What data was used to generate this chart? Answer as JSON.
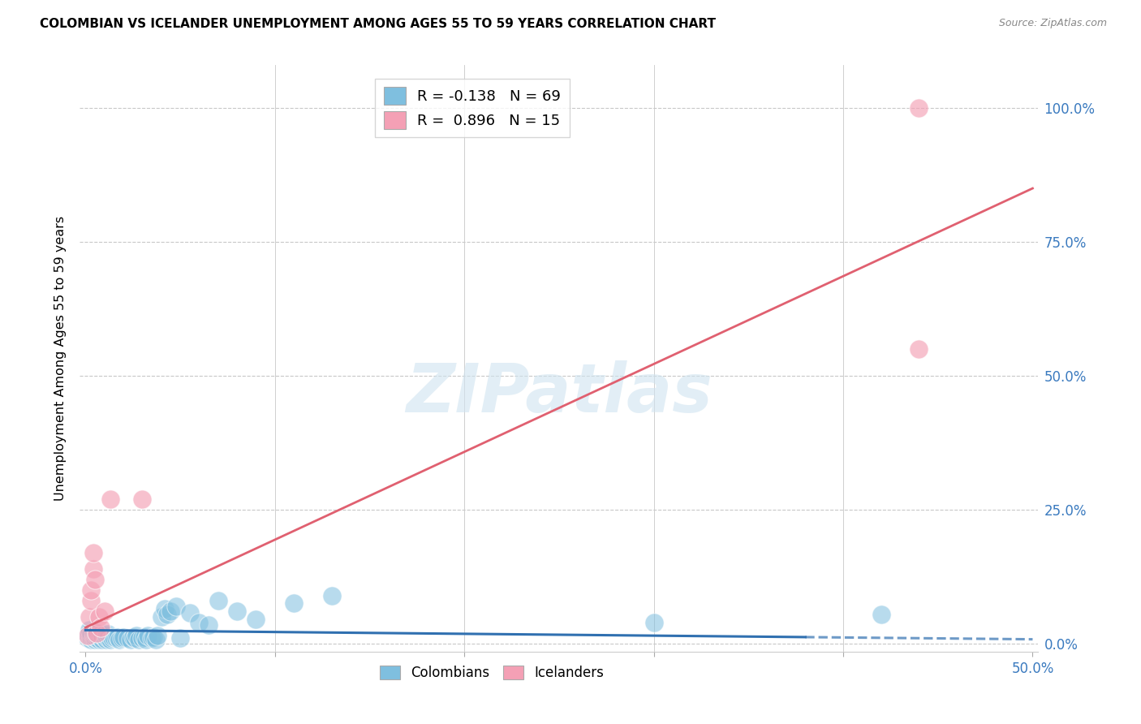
{
  "title": "COLOMBIAN VS ICELANDER UNEMPLOYMENT AMONG AGES 55 TO 59 YEARS CORRELATION CHART",
  "source": "Source: ZipAtlas.com",
  "ylabel": "Unemployment Among Ages 55 to 59 years",
  "xlim": [
    -0.003,
    0.503
  ],
  "ylim": [
    -0.015,
    1.08
  ],
  "ytick_positions": [
    0.0,
    0.25,
    0.5,
    0.75,
    1.0
  ],
  "ytick_labels": [
    "0.0%",
    "25.0%",
    "50.0%",
    "75.0%",
    "100.0%"
  ],
  "xtick_positions": [
    0.0,
    0.1,
    0.2,
    0.3,
    0.4,
    0.5
  ],
  "xtick_labels_show": [
    "0.0%",
    "",
    "",
    "",
    "",
    "50.0%"
  ],
  "colombian_color": "#7fbfdf",
  "icelander_color": "#f4a0b5",
  "colombian_line_color": "#3070b0",
  "icelander_line_color": "#e06070",
  "colombian_R": -0.138,
  "colombian_N": 69,
  "icelander_R": 0.896,
  "icelander_N": 15,
  "watermark": "ZIPatlas",
  "background_color": "#ffffff",
  "grid_color": "#c8c8c8",
  "col_scatter_x": [
    0.001,
    0.001,
    0.002,
    0.002,
    0.002,
    0.002,
    0.003,
    0.003,
    0.003,
    0.003,
    0.004,
    0.004,
    0.004,
    0.005,
    0.005,
    0.005,
    0.006,
    0.006,
    0.006,
    0.007,
    0.007,
    0.008,
    0.008,
    0.009,
    0.009,
    0.01,
    0.01,
    0.011,
    0.011,
    0.012,
    0.012,
    0.013,
    0.014,
    0.015,
    0.016,
    0.017,
    0.018,
    0.019,
    0.02,
    0.022,
    0.024,
    0.025,
    0.026,
    0.027,
    0.028,
    0.03,
    0.031,
    0.032,
    0.033,
    0.035,
    0.036,
    0.037,
    0.038,
    0.04,
    0.042,
    0.043,
    0.045,
    0.048,
    0.05,
    0.055,
    0.06,
    0.065,
    0.07,
    0.08,
    0.09,
    0.11,
    0.13,
    0.3,
    0.42
  ],
  "col_scatter_y": [
    0.01,
    0.015,
    0.01,
    0.015,
    0.02,
    0.025,
    0.008,
    0.012,
    0.015,
    0.02,
    0.01,
    0.015,
    0.02,
    0.008,
    0.012,
    0.018,
    0.01,
    0.015,
    0.02,
    0.008,
    0.015,
    0.01,
    0.018,
    0.008,
    0.015,
    0.01,
    0.018,
    0.008,
    0.015,
    0.01,
    0.018,
    0.008,
    0.01,
    0.012,
    0.01,
    0.012,
    0.008,
    0.01,
    0.012,
    0.01,
    0.008,
    0.012,
    0.01,
    0.015,
    0.008,
    0.01,
    0.012,
    0.008,
    0.015,
    0.01,
    0.012,
    0.008,
    0.015,
    0.05,
    0.065,
    0.055,
    0.06,
    0.07,
    0.01,
    0.058,
    0.04,
    0.035,
    0.08,
    0.06,
    0.045,
    0.075,
    0.09,
    0.04,
    0.055
  ],
  "ice_scatter_x": [
    0.001,
    0.002,
    0.003,
    0.003,
    0.004,
    0.004,
    0.005,
    0.006,
    0.007,
    0.008,
    0.01,
    0.013,
    0.03,
    0.44,
    0.44
  ],
  "ice_scatter_y": [
    0.015,
    0.05,
    0.08,
    0.1,
    0.14,
    0.17,
    0.12,
    0.02,
    0.05,
    0.03,
    0.06,
    0.27,
    0.27,
    0.55,
    1.0
  ],
  "col_line_x": [
    0.0,
    0.5
  ],
  "col_line_y": [
    0.025,
    0.008
  ],
  "ice_line_x": [
    0.0,
    0.5
  ],
  "ice_line_y": [
    0.03,
    0.85
  ]
}
